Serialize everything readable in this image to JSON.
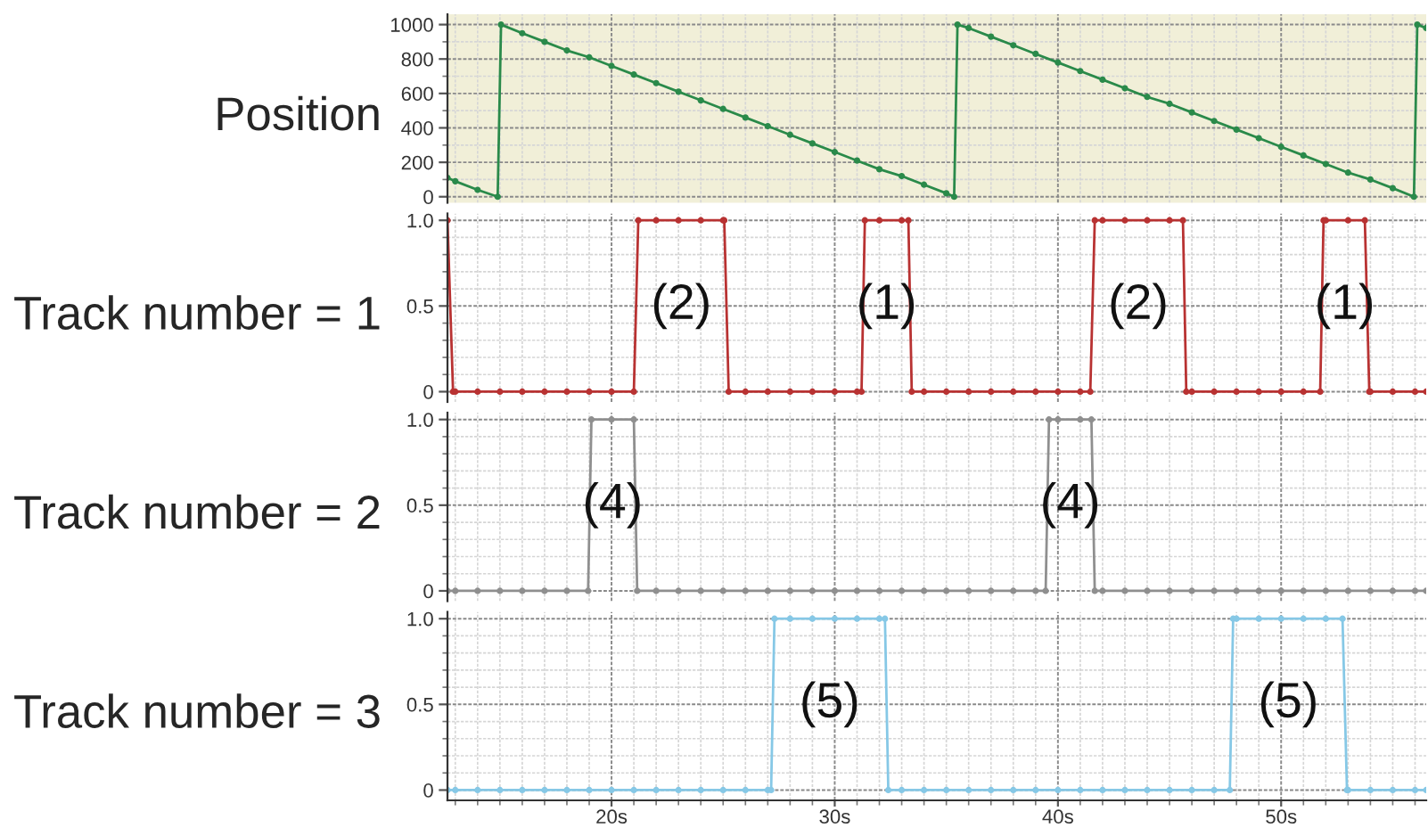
{
  "chart_data": [
    {
      "type": "line",
      "ylabel": "Position",
      "grid": true,
      "marker": "circle",
      "line_style": "solid",
      "tick_labels": "y",
      "xlim": [
        12.65,
        56.5
      ],
      "ylim": [
        -35,
        1060
      ],
      "xticks": [
        20,
        30,
        40,
        50,
        {
          "value": 13,
          "label": null
        },
        {
          "value": 14,
          "label": null
        },
        {
          "value": 15,
          "label": null
        },
        {
          "value": 16,
          "label": null
        },
        {
          "value": 17,
          "label": null
        },
        {
          "value": 18,
          "label": null
        },
        {
          "value": 19,
          "label": null
        },
        {
          "value": 21,
          "label": null
        },
        {
          "value": 22,
          "label": null
        },
        {
          "value": 23,
          "label": null
        },
        {
          "value": 24,
          "label": null
        },
        {
          "value": 25,
          "label": null
        },
        {
          "value": 26,
          "label": null
        },
        {
          "value": 27,
          "label": null
        },
        {
          "value": 28,
          "label": null
        },
        {
          "value": 29,
          "label": null
        },
        {
          "value": 31,
          "label": null
        },
        {
          "value": 32,
          "label": null
        },
        {
          "value": 33,
          "label": null
        },
        {
          "value": 34,
          "label": null
        },
        {
          "value": 35,
          "label": null
        },
        {
          "value": 36,
          "label": null
        },
        {
          "value": 37,
          "label": null
        },
        {
          "value": 38,
          "label": null
        },
        {
          "value": 39,
          "label": null
        },
        {
          "value": 41,
          "label": null
        },
        {
          "value": 42,
          "label": null
        },
        {
          "value": 43,
          "label": null
        },
        {
          "value": 44,
          "label": null
        },
        {
          "value": 45,
          "label": null
        },
        {
          "value": 46,
          "label": null
        },
        {
          "value": 47,
          "label": null
        },
        {
          "value": 48,
          "label": null
        },
        {
          "value": 49,
          "label": null
        },
        {
          "value": 51,
          "label": null
        },
        {
          "value": 52,
          "label": null
        },
        {
          "value": 53,
          "label": null
        },
        {
          "value": 54,
          "label": null
        },
        {
          "value": 55,
          "label": null
        },
        {
          "value": 56,
          "label": null
        }
      ],
      "yticks": [
        0,
        200,
        400,
        600,
        800,
        1000,
        {
          "value": 100,
          "label": null
        },
        {
          "value": 300,
          "label": null
        },
        {
          "value": 500,
          "label": null
        },
        {
          "value": 700,
          "label": null
        },
        {
          "value": 900,
          "label": null
        }
      ],
      "series": [
        {
          "color": "#2a8a4a",
          "x": [
            12.65,
            13,
            14,
            14.9,
            15.05,
            16,
            17,
            18,
            19,
            20,
            21,
            22,
            23,
            24,
            25,
            26,
            27,
            28,
            29,
            30,
            31,
            32,
            33,
            34,
            35,
            35.35,
            35.5,
            36,
            37,
            38,
            39,
            40,
            41,
            42,
            43,
            44,
            45,
            46,
            47,
            48,
            49,
            50,
            51,
            52,
            53,
            54,
            55,
            55.95,
            56.1,
            56.5
          ],
          "values": [
            110,
            90,
            40,
            0,
            1000,
            950,
            900,
            850,
            810,
            760,
            710,
            660,
            610,
            560,
            510,
            460,
            410,
            360,
            310,
            260,
            210,
            160,
            120,
            70,
            20,
            0,
            1000,
            980,
            930,
            880,
            830,
            780,
            730,
            680,
            630,
            580,
            540,
            490,
            440,
            390,
            340,
            290,
            240,
            190,
            140,
            100,
            50,
            0,
            1000,
            980
          ]
        }
      ]
    },
    {
      "type": "line",
      "ylabel": "Track number = 1",
      "grid": true,
      "marker": "circle",
      "line_style": "solid",
      "tick_labels": "y",
      "xlim": [
        12.65,
        56.5
      ],
      "ylim": [
        -0.06,
        1.04
      ],
      "xticks": [
        20,
        30,
        40,
        50,
        {
          "value": 13,
          "label": null
        },
        {
          "value": 14,
          "label": null
        },
        {
          "value": 15,
          "label": null
        },
        {
          "value": 16,
          "label": null
        },
        {
          "value": 17,
          "label": null
        },
        {
          "value": 18,
          "label": null
        },
        {
          "value": 19,
          "label": null
        },
        {
          "value": 21,
          "label": null
        },
        {
          "value": 22,
          "label": null
        },
        {
          "value": 23,
          "label": null
        },
        {
          "value": 24,
          "label": null
        },
        {
          "value": 25,
          "label": null
        },
        {
          "value": 26,
          "label": null
        },
        {
          "value": 27,
          "label": null
        },
        {
          "value": 28,
          "label": null
        },
        {
          "value": 29,
          "label": null
        },
        {
          "value": 31,
          "label": null
        },
        {
          "value": 32,
          "label": null
        },
        {
          "value": 33,
          "label": null
        },
        {
          "value": 34,
          "label": null
        },
        {
          "value": 35,
          "label": null
        },
        {
          "value": 36,
          "label": null
        },
        {
          "value": 37,
          "label": null
        },
        {
          "value": 38,
          "label": null
        },
        {
          "value": 39,
          "label": null
        },
        {
          "value": 41,
          "label": null
        },
        {
          "value": 42,
          "label": null
        },
        {
          "value": 43,
          "label": null
        },
        {
          "value": 44,
          "label": null
        },
        {
          "value": 45,
          "label": null
        },
        {
          "value": 46,
          "label": null
        },
        {
          "value": 47,
          "label": null
        },
        {
          "value": 48,
          "label": null
        },
        {
          "value": 49,
          "label": null
        },
        {
          "value": 51,
          "label": null
        },
        {
          "value": 52,
          "label": null
        },
        {
          "value": 53,
          "label": null
        },
        {
          "value": 54,
          "label": null
        },
        {
          "value": 55,
          "label": null
        },
        {
          "value": 56,
          "label": null
        }
      ],
      "yticks": [
        0,
        0.5,
        {
          "value": 1,
          "label": "1.0"
        },
        {
          "value": 0.1,
          "label": null
        },
        {
          "value": 0.2,
          "label": null
        },
        {
          "value": 0.3,
          "label": null
        },
        {
          "value": 0.4,
          "label": null
        },
        {
          "value": 0.6,
          "label": null
        },
        {
          "value": 0.7,
          "label": null
        },
        {
          "value": 0.8,
          "label": null
        },
        {
          "value": 0.9,
          "label": null
        }
      ],
      "series": [
        {
          "color": "#b83232",
          "x": [
            12.65,
            12.9,
            13,
            14,
            15,
            16,
            17,
            18,
            19,
            20,
            21.0,
            21.2,
            22,
            23,
            24,
            25,
            25.05,
            25.25,
            26,
            27,
            28,
            29,
            30,
            31,
            31.2,
            31.35,
            32,
            33,
            33.3,
            33.45,
            34,
            35,
            36,
            37,
            38,
            39,
            40,
            41,
            41.45,
            41.65,
            42,
            43,
            44,
            45,
            45.6,
            45.75,
            46,
            47,
            48,
            49,
            50,
            51,
            51.75,
            51.9,
            52,
            53,
            53.75,
            53.95,
            54,
            55,
            56,
            56.5
          ],
          "values": [
            1,
            0,
            0,
            0,
            0,
            0,
            0,
            0,
            0,
            0,
            0,
            1,
            1,
            1,
            1,
            1,
            1,
            0,
            0,
            0,
            0,
            0,
            0,
            0,
            0,
            1,
            1,
            1,
            1,
            0,
            0,
            0,
            0,
            0,
            0,
            0,
            0,
            0,
            0,
            1,
            1,
            1,
            1,
            1,
            1,
            0,
            0,
            0,
            0,
            0,
            0,
            0,
            0,
            1,
            1,
            1,
            1,
            0,
            0,
            0,
            0,
            0
          ]
        }
      ],
      "annotations": [
        "(2)",
        "(1)",
        "(2)",
        "(1)"
      ]
    },
    {
      "type": "line",
      "ylabel": "Track number = 2",
      "grid": true,
      "marker": "circle",
      "line_style": "solid",
      "tick_labels": "y",
      "xlim": [
        12.65,
        56.5
      ],
      "ylim": [
        -0.06,
        1.04
      ],
      "xticks": [
        20,
        30,
        40,
        50,
        {
          "value": 13,
          "label": null
        },
        {
          "value": 14,
          "label": null
        },
        {
          "value": 15,
          "label": null
        },
        {
          "value": 16,
          "label": null
        },
        {
          "value": 17,
          "label": null
        },
        {
          "value": 18,
          "label": null
        },
        {
          "value": 19,
          "label": null
        },
        {
          "value": 21,
          "label": null
        },
        {
          "value": 22,
          "label": null
        },
        {
          "value": 23,
          "label": null
        },
        {
          "value": 24,
          "label": null
        },
        {
          "value": 25,
          "label": null
        },
        {
          "value": 26,
          "label": null
        },
        {
          "value": 27,
          "label": null
        },
        {
          "value": 28,
          "label": null
        },
        {
          "value": 29,
          "label": null
        },
        {
          "value": 31,
          "label": null
        },
        {
          "value": 32,
          "label": null
        },
        {
          "value": 33,
          "label": null
        },
        {
          "value": 34,
          "label": null
        },
        {
          "value": 35,
          "label": null
        },
        {
          "value": 36,
          "label": null
        },
        {
          "value": 37,
          "label": null
        },
        {
          "value": 38,
          "label": null
        },
        {
          "value": 39,
          "label": null
        },
        {
          "value": 41,
          "label": null
        },
        {
          "value": 42,
          "label": null
        },
        {
          "value": 43,
          "label": null
        },
        {
          "value": 44,
          "label": null
        },
        {
          "value": 45,
          "label": null
        },
        {
          "value": 46,
          "label": null
        },
        {
          "value": 47,
          "label": null
        },
        {
          "value": 48,
          "label": null
        },
        {
          "value": 49,
          "label": null
        },
        {
          "value": 51,
          "label": null
        },
        {
          "value": 52,
          "label": null
        },
        {
          "value": 53,
          "label": null
        },
        {
          "value": 54,
          "label": null
        },
        {
          "value": 55,
          "label": null
        },
        {
          "value": 56,
          "label": null
        }
      ],
      "yticks": [
        0,
        0.5,
        {
          "value": 1,
          "label": "1.0"
        },
        {
          "value": 0.1,
          "label": null
        },
        {
          "value": 0.2,
          "label": null
        },
        {
          "value": 0.3,
          "label": null
        },
        {
          "value": 0.4,
          "label": null
        },
        {
          "value": 0.6,
          "label": null
        },
        {
          "value": 0.7,
          "label": null
        },
        {
          "value": 0.8,
          "label": null
        },
        {
          "value": 0.9,
          "label": null
        }
      ],
      "series": [
        {
          "color": "#8f8f8f",
          "x": [
            12.65,
            13,
            14,
            15,
            16,
            17,
            18,
            18.95,
            19.1,
            20,
            21.0,
            21.15,
            22,
            23,
            24,
            25,
            26,
            27,
            28,
            29,
            30,
            31,
            32,
            33,
            34,
            35,
            36,
            37,
            38,
            39,
            39.45,
            39.6,
            40,
            41,
            41.5,
            41.65,
            42,
            43,
            44,
            45,
            46,
            47,
            48,
            49,
            50,
            51,
            52,
            53,
            54,
            55,
            56,
            56.5
          ],
          "values": [
            0,
            0,
            0,
            0,
            0,
            0,
            0,
            0,
            1,
            1,
            1,
            0,
            0,
            0,
            0,
            0,
            0,
            0,
            0,
            0,
            0,
            0,
            0,
            0,
            0,
            0,
            0,
            0,
            0,
            0,
            0,
            1,
            1,
            1,
            1,
            0,
            0,
            0,
            0,
            0,
            0,
            0,
            0,
            0,
            0,
            0,
            0,
            0,
            0,
            0,
            0,
            0
          ]
        }
      ],
      "annotations": [
        "(4)",
        "(4)"
      ]
    },
    {
      "type": "line",
      "ylabel": "Track number = 3",
      "grid": true,
      "marker": "circle",
      "line_style": "solid",
      "xlim": [
        12.65,
        56.5
      ],
      "ylim": [
        -0.06,
        1.04
      ],
      "xticks": [
        {
          "value": 20,
          "label": "20s"
        },
        {
          "value": 30,
          "label": "30s"
        },
        {
          "value": 40,
          "label": "40s"
        },
        {
          "value": 50,
          "label": "50s"
        },
        {
          "value": 13,
          "label": null
        },
        {
          "value": 14,
          "label": null
        },
        {
          "value": 15,
          "label": null
        },
        {
          "value": 16,
          "label": null
        },
        {
          "value": 17,
          "label": null
        },
        {
          "value": 18,
          "label": null
        },
        {
          "value": 19,
          "label": null
        },
        {
          "value": 21,
          "label": null
        },
        {
          "value": 22,
          "label": null
        },
        {
          "value": 23,
          "label": null
        },
        {
          "value": 24,
          "label": null
        },
        {
          "value": 25,
          "label": null
        },
        {
          "value": 26,
          "label": null
        },
        {
          "value": 27,
          "label": null
        },
        {
          "value": 28,
          "label": null
        },
        {
          "value": 29,
          "label": null
        },
        {
          "value": 31,
          "label": null
        },
        {
          "value": 32,
          "label": null
        },
        {
          "value": 33,
          "label": null
        },
        {
          "value": 34,
          "label": null
        },
        {
          "value": 35,
          "label": null
        },
        {
          "value": 36,
          "label": null
        },
        {
          "value": 37,
          "label": null
        },
        {
          "value": 38,
          "label": null
        },
        {
          "value": 39,
          "label": null
        },
        {
          "value": 41,
          "label": null
        },
        {
          "value": 42,
          "label": null
        },
        {
          "value": 43,
          "label": null
        },
        {
          "value": 44,
          "label": null
        },
        {
          "value": 45,
          "label": null
        },
        {
          "value": 46,
          "label": null
        },
        {
          "value": 47,
          "label": null
        },
        {
          "value": 48,
          "label": null
        },
        {
          "value": 49,
          "label": null
        },
        {
          "value": 51,
          "label": null
        },
        {
          "value": 52,
          "label": null
        },
        {
          "value": 53,
          "label": null
        },
        {
          "value": 54,
          "label": null
        },
        {
          "value": 55,
          "label": null
        },
        {
          "value": 56,
          "label": null
        }
      ],
      "yticks": [
        0,
        0.5,
        {
          "value": 1,
          "label": "1.0"
        },
        {
          "value": 0.1,
          "label": null
        },
        {
          "value": 0.2,
          "label": null
        },
        {
          "value": 0.3,
          "label": null
        },
        {
          "value": 0.4,
          "label": null
        },
        {
          "value": 0.6,
          "label": null
        },
        {
          "value": 0.7,
          "label": null
        },
        {
          "value": 0.8,
          "label": null
        },
        {
          "value": 0.9,
          "label": null
        }
      ],
      "series": [
        {
          "color": "#86c8e6",
          "x": [
            12.65,
            13,
            14,
            15,
            16,
            17,
            18,
            19,
            20,
            21,
            22,
            23,
            24,
            25,
            26,
            27,
            27.15,
            27.3,
            28,
            29,
            30,
            31,
            32,
            32.25,
            32.4,
            33,
            34,
            35,
            36,
            37,
            38,
            39,
            40,
            41,
            42,
            43,
            44,
            45,
            46,
            47,
            47.7,
            47.85,
            48,
            49,
            50,
            51,
            52,
            52.75,
            52.95,
            53,
            54,
            55,
            56,
            56.5
          ],
          "values": [
            0,
            0,
            0,
            0,
            0,
            0,
            0,
            0,
            0,
            0,
            0,
            0,
            0,
            0,
            0,
            0,
            0,
            1,
            1,
            1,
            1,
            1,
            1,
            1,
            0,
            0,
            0,
            0,
            0,
            0,
            0,
            0,
            0,
            0,
            0,
            0,
            0,
            0,
            0,
            0,
            0,
            1,
            1,
            1,
            1,
            1,
            1,
            1,
            0,
            0,
            0,
            0,
            0,
            0
          ]
        }
      ],
      "annotations": [
        "(5)",
        "(5)"
      ]
    }
  ]
}
